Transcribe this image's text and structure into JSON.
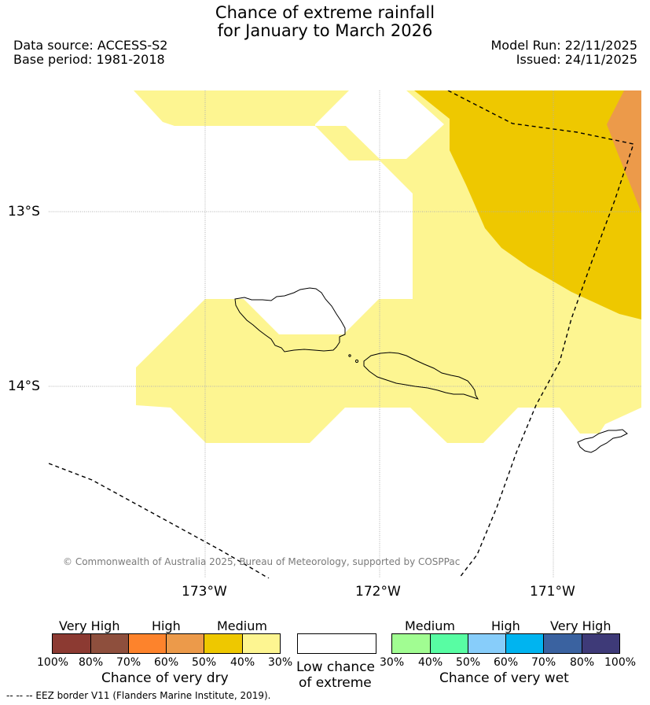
{
  "title": {
    "line1": "Chance of extreme rainfall",
    "line2": "for January to March 2026"
  },
  "meta": {
    "data_source": "Data source: ACCESS-S2",
    "base_period": "Base period: 1981-2018",
    "model_run": "Model Run: 22/11/2025",
    "issued": "Issued: 24/11/2025"
  },
  "map": {
    "lat_labels": [
      "13°S",
      "14°S"
    ],
    "lon_labels": [
      "173°W",
      "172°W",
      "171°W"
    ],
    "copyright": "© Commonwealth of Australia 2025, Bureau of Meteorology, supported by COSPPac",
    "colors": {
      "medium_dry": "#fdf591",
      "high_dry": "#eec800",
      "very_high_dry": "#ec9a4a"
    }
  },
  "legend": {
    "dry": {
      "captions": [
        "Very High",
        "High",
        "Medium"
      ],
      "ticks": [
        "100%",
        "80%",
        "70%",
        "60%",
        "50%",
        "40%",
        "30%"
      ],
      "colors": [
        "#8c3a32",
        "#8e4f3d",
        "#fd832c",
        "#ec9a4a",
        "#eec800",
        "#fdf591"
      ],
      "name": "Chance of very dry"
    },
    "low": {
      "line1": "Low chance",
      "line2": "of extreme"
    },
    "wet": {
      "captions": [
        "Medium",
        "High",
        "Very High"
      ],
      "ticks": [
        "30%",
        "40%",
        "50%",
        "60%",
        "70%",
        "80%",
        "100%"
      ],
      "colors": [
        "#a1fd92",
        "#58fda3",
        "#87cdfa",
        "#00b4f0",
        "#3a62a0",
        "#3e3a78"
      ],
      "name": "Chance of very wet"
    }
  },
  "footer": "--  --  -- EEZ border V11 (Flanders Marine Institute, 2019)."
}
